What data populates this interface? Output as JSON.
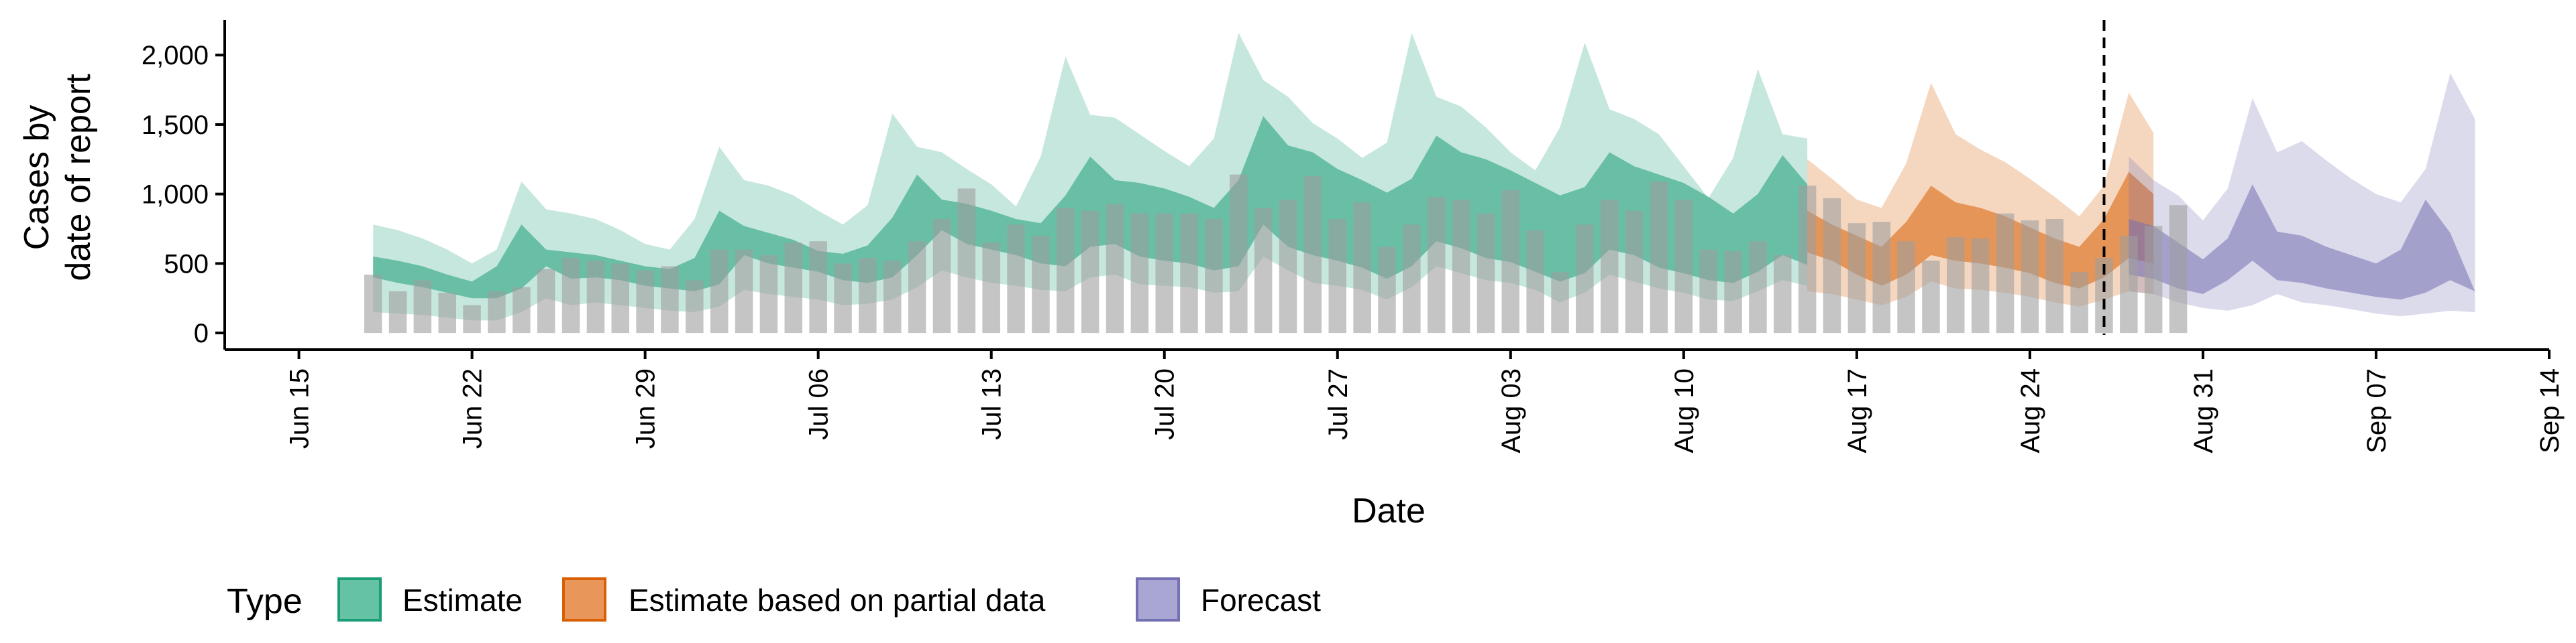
{
  "chart_data": {
    "type": "area",
    "title": "",
    "xlabel": "Date",
    "ylabel": [
      "Cases by",
      "date of report"
    ],
    "ylim": [
      -120,
      2300
    ],
    "yticks": [
      0,
      500,
      1000,
      1500,
      2000
    ],
    "ytick_labels": [
      "0",
      "500",
      "1,000",
      "1,500",
      "2,000"
    ],
    "xlim": [
      "2020-06-12",
      "2020-09-14"
    ],
    "xticks": [
      "2020-06-15",
      "2020-06-22",
      "2020-06-29",
      "2020-07-06",
      "2020-07-13",
      "2020-07-20",
      "2020-07-27",
      "2020-08-03",
      "2020-08-10",
      "2020-08-17",
      "2020-08-24",
      "2020-08-31",
      "2020-09-07",
      "2020-09-14"
    ],
    "xtick_labels": [
      "Jun 15",
      "Jun 22",
      "Jun 29",
      "Jul 06",
      "Jul 13",
      "Jul 20",
      "Jul 27",
      "Aug 03",
      "Aug 10",
      "Aug 17",
      "Aug 24",
      "Aug 31",
      "Sep 07",
      "Sep 14"
    ],
    "vline_date": "2020-08-27",
    "grid": false,
    "legend": {
      "title": "Type",
      "position": "bottom",
      "entries": [
        {
          "name": "Estimate",
          "fill": "#66c2a5",
          "stroke": "#1b9e77"
        },
        {
          "name": "Estimate based on partial data",
          "fill": "#e8965a",
          "stroke": "#d95f02"
        },
        {
          "name": "Forecast",
          "fill": "#a9a6d4",
          "stroke": "#7570b3"
        }
      ]
    },
    "colors": {
      "Estimate": "#1b9e77",
      "Estimate based on partial data": "#d95f02",
      "Forecast": "#7570b3",
      "reported": "#a6a6a6"
    },
    "reported_cases": {
      "start_date": "2020-06-18",
      "values": [
        420,
        300,
        380,
        290,
        200,
        300,
        330,
        460,
        540,
        520,
        500,
        450,
        480,
        380,
        600,
        600,
        560,
        650,
        660,
        500,
        540,
        520,
        660,
        820,
        1040,
        650,
        780,
        700,
        900,
        880,
        930,
        860,
        860,
        860,
        820,
        1140,
        900,
        960,
        1130,
        820,
        940,
        620,
        780,
        980,
        960,
        860,
        1030,
        740,
        440,
        780,
        960,
        880,
        1090,
        960,
        600,
        590,
        660,
        560,
        1060,
        970,
        790,
        800,
        660,
        520,
        690,
        680,
        860,
        810,
        820,
        440,
        540,
        700,
        770,
        920
      ]
    },
    "series": [
      {
        "type": "Estimate",
        "start_date": "2020-06-18",
        "dates_note": "",
        "lower90": [
          150,
          140,
          130,
          110,
          90,
          90,
          150,
          250,
          200,
          220,
          200,
          180,
          160,
          150,
          190,
          310,
          280,
          260,
          240,
          200,
          210,
          240,
          330,
          450,
          400,
          360,
          340,
          310,
          300,
          400,
          420,
          350,
          340,
          330,
          290,
          300,
          550,
          450,
          360,
          340,
          310,
          240,
          330,
          480,
          430,
          380,
          360,
          310,
          220,
          290,
          420,
          370,
          320,
          290,
          240,
          230,
          300,
          380,
          340
        ],
        "lower50": [
          400,
          360,
          330,
          290,
          250,
          250,
          320,
          480,
          390,
          400,
          380,
          340,
          320,
          300,
          350,
          560,
          500,
          470,
          440,
          380,
          360,
          400,
          560,
          740,
          640,
          600,
          560,
          500,
          480,
          620,
          640,
          550,
          520,
          500,
          450,
          480,
          780,
          620,
          560,
          520,
          470,
          390,
          480,
          660,
          610,
          540,
          510,
          440,
          370,
          430,
          600,
          560,
          470,
          430,
          380,
          360,
          440,
          560,
          490
        ],
        "upper50": [
          550,
          520,
          480,
          420,
          370,
          480,
          780,
          600,
          580,
          560,
          520,
          480,
          460,
          540,
          880,
          770,
          720,
          670,
          590,
          570,
          630,
          830,
          1140,
          960,
          930,
          880,
          820,
          790,
          990,
          1270,
          1100,
          1080,
          1040,
          980,
          900,
          1100,
          1560,
          1350,
          1300,
          1180,
          1100,
          1010,
          1110,
          1420,
          1300,
          1250,
          1170,
          1080,
          990,
          1050,
          1300,
          1200,
          1140,
          1080,
          980,
          860,
          1000,
          1280,
          1070
        ],
        "upper90": [
          780,
          740,
          680,
          600,
          500,
          600,
          1090,
          890,
          860,
          820,
          740,
          640,
          600,
          820,
          1340,
          1100,
          1060,
          990,
          880,
          780,
          920,
          1580,
          1340,
          1300,
          1180,
          1070,
          910,
          1270,
          1990,
          1570,
          1550,
          1430,
          1310,
          1200,
          1400,
          2160,
          1820,
          1700,
          1510,
          1400,
          1260,
          1370,
          2160,
          1700,
          1630,
          1480,
          1300,
          1170,
          1480,
          2090,
          1610,
          1540,
          1430,
          1200,
          970,
          1260,
          1900,
          1430,
          1400
        ]
      },
      {
        "type": "Estimate based on partial data",
        "start_date": "2020-08-15",
        "lower90": [
          300,
          280,
          240,
          200,
          260,
          370,
          320,
          310,
          290,
          260,
          220,
          190,
          240,
          300,
          280
        ],
        "lower50": [
          580,
          520,
          420,
          340,
          420,
          560,
          520,
          500,
          470,
          430,
          360,
          320,
          400,
          540,
          500
        ],
        "upper50": [
          880,
          780,
          700,
          620,
          800,
          1060,
          940,
          900,
          840,
          760,
          680,
          620,
          820,
          1160,
          1000
        ],
        "upper90": [
          1250,
          1110,
          960,
          900,
          1220,
          1800,
          1430,
          1320,
          1230,
          1110,
          980,
          840,
          1060,
          1730,
          1440
        ]
      },
      {
        "type": "Forecast",
        "start_date": "2020-08-28",
        "lower90": [
          300,
          280,
          220,
          180,
          160,
          200,
          280,
          220,
          200,
          170,
          140,
          120,
          140,
          160,
          150
        ],
        "lower50": [
          420,
          390,
          320,
          280,
          380,
          520,
          380,
          360,
          320,
          290,
          260,
          240,
          290,
          380,
          300
        ],
        "upper50": [
          820,
          770,
          650,
          530,
          680,
          1070,
          730,
          700,
          620,
          560,
          500,
          600,
          960,
          720,
          0
        ],
        "upper90": [
          1270,
          1100,
          990,
          810,
          1040,
          1690,
          1300,
          1380,
          1240,
          1110,
          1000,
          940,
          1180,
          1870,
          1540
        ]
      }
    ]
  }
}
